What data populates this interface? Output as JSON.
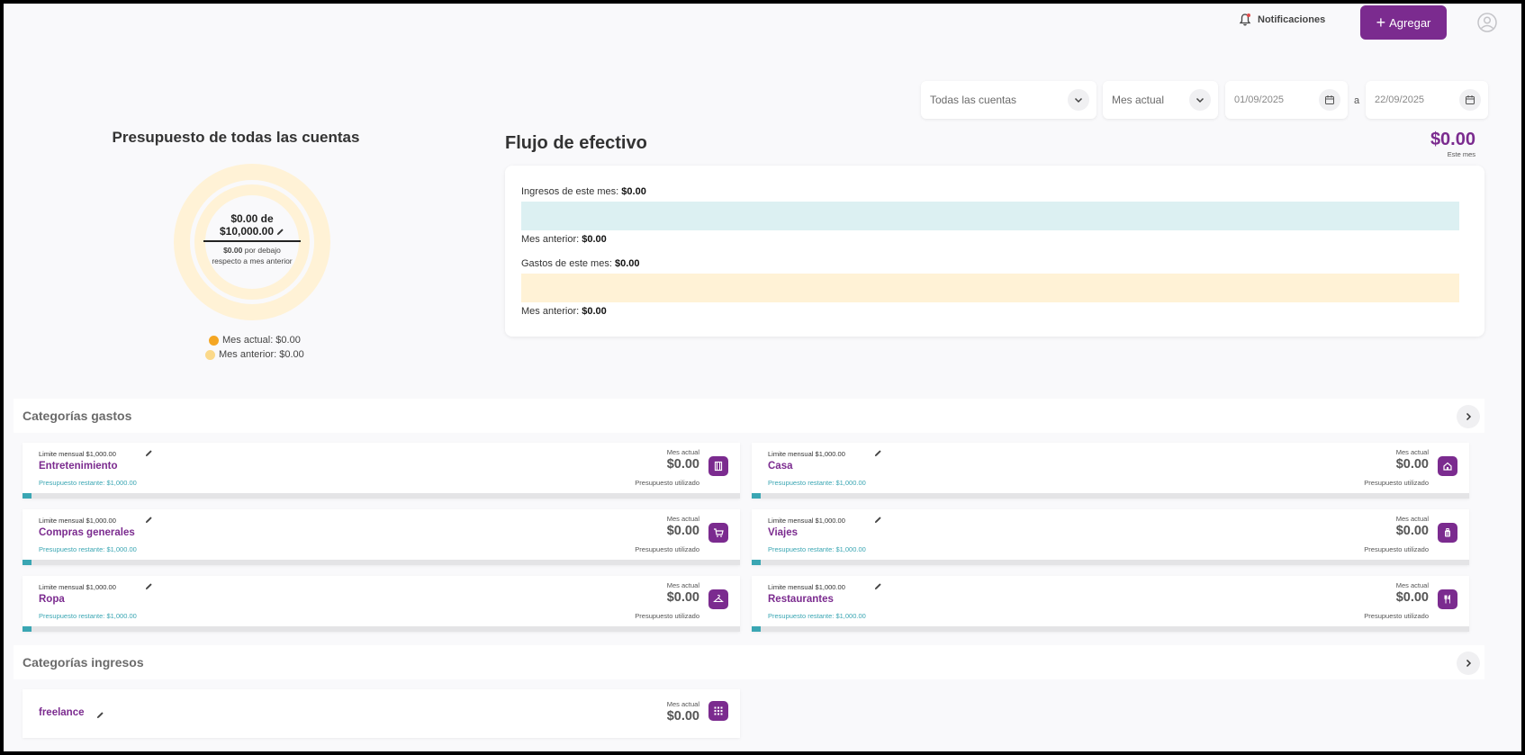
{
  "topbar": {
    "notifications_label": "Notificaciones",
    "add_label": "Agregar"
  },
  "filters": {
    "account": "Todas las cuentas",
    "period": "Mes actual",
    "date_from": "01/09/2025",
    "separator": "a",
    "date_to": "22/09/2025"
  },
  "budget": {
    "title": "Presupuesto de todas las cuentas",
    "spent": "$0.00 de",
    "limit": "$10,000.00",
    "note_amount": "$0.00",
    "note_rest": " por debajo",
    "note_line2": "respecto a mes anterior",
    "legend": [
      {
        "label": "Mes actual: $0.00",
        "color": "#f4a623"
      },
      {
        "label": "Mes anterior: $0.00",
        "color": "#fbd98a"
      }
    ]
  },
  "cashflow": {
    "title": "Flujo de efectivo",
    "total": "$0.00",
    "total_sub": "Este mes",
    "income_label": "Ingresos de este mes:",
    "income_value": "$0.00",
    "income_prev_label": "Mes anterior:",
    "income_prev_value": "$0.00",
    "expense_label": "Gastos de este mes:",
    "expense_value": "$0.00",
    "expense_prev_label": "Mes anterior:",
    "expense_prev_value": "$0.00",
    "income_color": "#dcf0f2",
    "expense_color": "#fff2d6"
  },
  "expense_section": {
    "title": "Categorías gastos",
    "cards": [
      {
        "limit": "Limite mensual $1,000.00",
        "name": "Entretenimiento",
        "remaining": "Presupuesto restante: $1,000.00",
        "period": "Mes actual",
        "amount": "$0.00",
        "used": "Presupuesto utilizado",
        "icon": "film-icon",
        "progress": 0
      },
      {
        "limit": "Limite mensual $1,000.00",
        "name": "Casa",
        "remaining": "Presupuesto restante: $1,000.00",
        "period": "Mes actual",
        "amount": "$0.00",
        "used": "Presupuesto utilizado",
        "icon": "house-icon",
        "progress": 0
      },
      {
        "limit": "Limite mensual $1,000.00",
        "name": "Compras generales",
        "remaining": "Presupuesto restante: $1,000.00",
        "period": "Mes actual",
        "amount": "$0.00",
        "used": "Presupuesto utilizado",
        "icon": "cart-icon",
        "progress": 0
      },
      {
        "limit": "Limite mensual $1,000.00",
        "name": "Viajes",
        "remaining": "Presupuesto restante: $1,000.00",
        "period": "Mes actual",
        "amount": "$0.00",
        "used": "Presupuesto utilizado",
        "icon": "luggage-icon",
        "progress": 0
      },
      {
        "limit": "Limite mensual $1,000.00",
        "name": "Ropa",
        "remaining": "Presupuesto restante: $1,000.00",
        "period": "Mes actual",
        "amount": "$0.00",
        "used": "Presupuesto utilizado",
        "icon": "hanger-icon",
        "progress": 0
      },
      {
        "limit": "Limite mensual $1,000.00",
        "name": "Restaurantes",
        "remaining": "Presupuesto restante: $1,000.00",
        "period": "Mes actual",
        "amount": "$0.00",
        "used": "Presupuesto utilizado",
        "icon": "cutlery-icon",
        "progress": 0
      }
    ]
  },
  "income_section": {
    "title": "Categorías ingresos",
    "cards": [
      {
        "name": "freelance",
        "period": "Mes actual",
        "amount": "$0.00",
        "icon": "grid-icon"
      }
    ]
  },
  "colors": {
    "accent": "#7b2b8f",
    "teal": "#3aa6b3",
    "donut_outer": "#fff2d6",
    "background": "#f9f9fb"
  }
}
